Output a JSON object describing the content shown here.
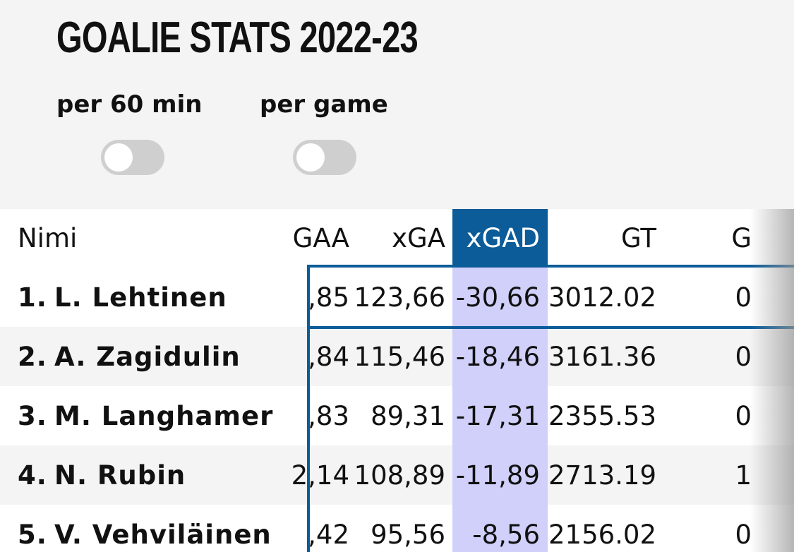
{
  "title": "GOALIE STATS 2022-23",
  "toggles": [
    {
      "label": "per 60 min",
      "on": false
    },
    {
      "label": "per game",
      "on": false
    }
  ],
  "table": {
    "headers": {
      "name": "Nimi",
      "gaa": "GAA",
      "xga": "xGA",
      "xgad": "xGAD",
      "gt": "GT",
      "g": "G"
    },
    "sorted_column": "xGAD",
    "rows": [
      {
        "rank": "1.",
        "name": "L. Lehtinen",
        "gaa": ",85",
        "xga": "123,66",
        "xgad": "-30,66",
        "gt": "3012.02",
        "g": "0"
      },
      {
        "rank": "2.",
        "name": "A. Zagidulin",
        "gaa": ",84",
        "xga": "115,46",
        "xgad": "-18,46",
        "gt": "3161.36",
        "g": "0"
      },
      {
        "rank": "3.",
        "name": "M. Langhamer",
        "gaa": ",83",
        "xga": "89,31",
        "xgad": "-17,31",
        "gt": "2355.53",
        "g": "0"
      },
      {
        "rank": "4.",
        "name": "N. Rubin",
        "gaa": "2,14",
        "xga": "108,89",
        "xgad": "-11,89",
        "gt": "2713.19",
        "g": "1"
      },
      {
        "rank": "5.",
        "name": "V. Vehviläinen",
        "gaa": ",42",
        "xga": "95,56",
        "xgad": "-8,56",
        "gt": "2156.02",
        "g": "0"
      }
    ]
  },
  "colors": {
    "accent": "#0b5c99",
    "sorted_column_bg": "#d0d0fb"
  }
}
